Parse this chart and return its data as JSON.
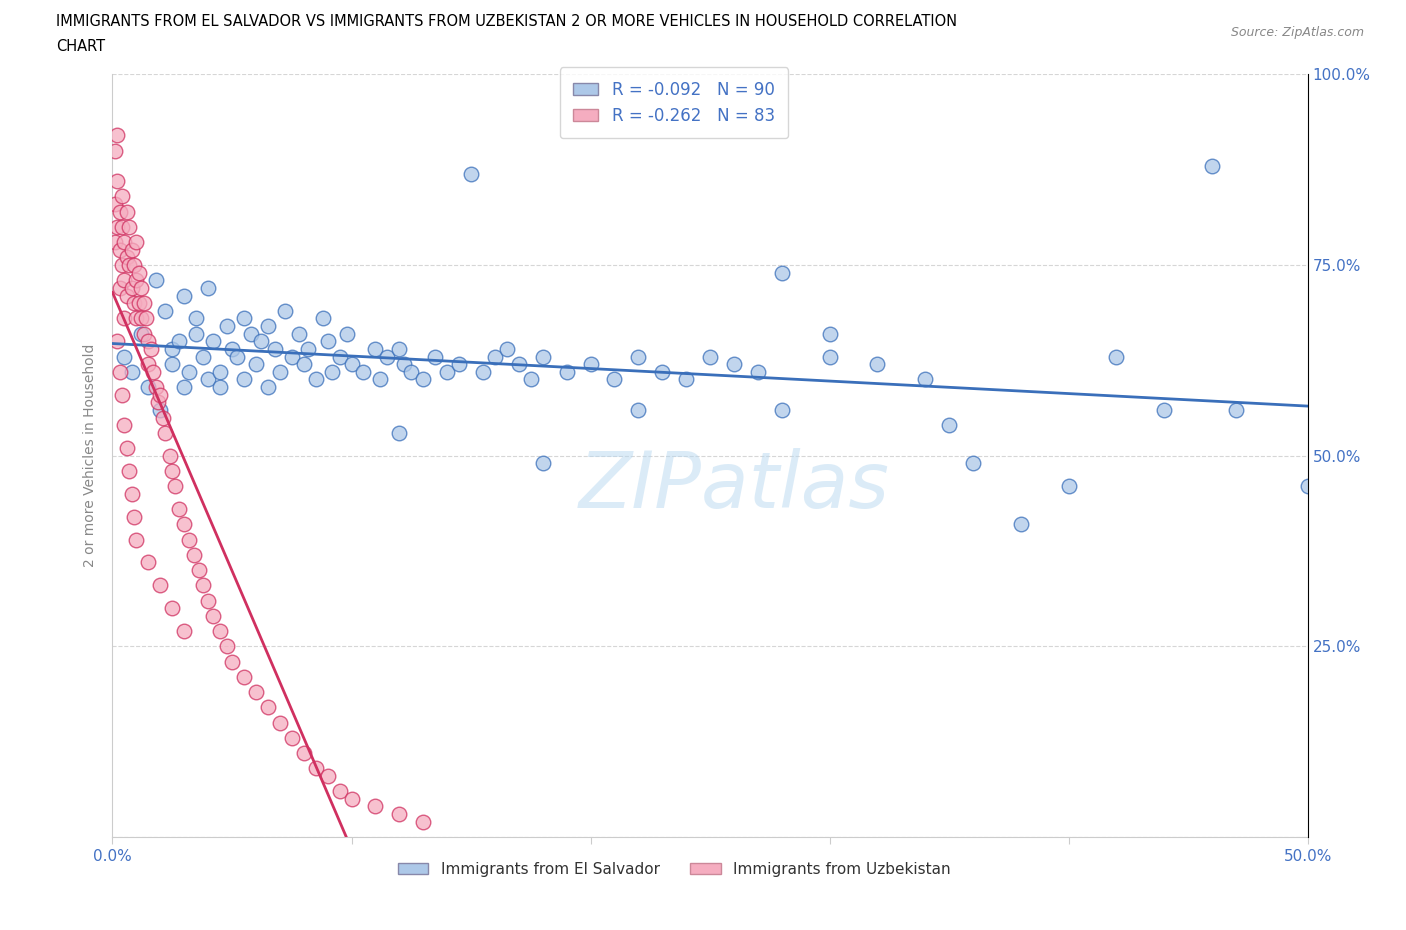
{
  "title_line1": "IMMIGRANTS FROM EL SALVADOR VS IMMIGRANTS FROM UZBEKISTAN 2 OR MORE VEHICLES IN HOUSEHOLD CORRELATION",
  "title_line2": "CHART",
  "source_text": "Source: ZipAtlas.com",
  "ylabel": "2 or more Vehicles in Household",
  "xlim": [
    0.0,
    0.5
  ],
  "ylim": [
    0.0,
    1.0
  ],
  "r_el_salvador": -0.092,
  "n_el_salvador": 90,
  "r_uzbekistan": -0.262,
  "n_uzbekistan": 83,
  "color_el_salvador": "#adc8e8",
  "color_uzbekistan": "#f5adc0",
  "line_color_el_salvador": "#3a6fba",
  "line_color_uzbekistan": "#d03060",
  "legend_label_el_salvador": "Immigrants from El Salvador",
  "legend_label_uzbekistan": "Immigrants from Uzbekistan",
  "watermark": "ZIPatlas",
  "el_salvador_x": [
    0.005,
    0.008,
    0.012,
    0.015,
    0.018,
    0.02,
    0.022,
    0.025,
    0.025,
    0.028,
    0.03,
    0.03,
    0.032,
    0.035,
    0.035,
    0.038,
    0.04,
    0.04,
    0.042,
    0.045,
    0.045,
    0.048,
    0.05,
    0.052,
    0.055,
    0.055,
    0.058,
    0.06,
    0.062,
    0.065,
    0.065,
    0.068,
    0.07,
    0.072,
    0.075,
    0.078,
    0.08,
    0.082,
    0.085,
    0.088,
    0.09,
    0.092,
    0.095,
    0.098,
    0.1,
    0.105,
    0.11,
    0.112,
    0.115,
    0.12,
    0.122,
    0.125,
    0.13,
    0.135,
    0.14,
    0.145,
    0.15,
    0.155,
    0.16,
    0.165,
    0.17,
    0.175,
    0.18,
    0.19,
    0.2,
    0.21,
    0.22,
    0.23,
    0.24,
    0.25,
    0.26,
    0.27,
    0.28,
    0.3,
    0.32,
    0.34,
    0.36,
    0.38,
    0.4,
    0.42,
    0.44,
    0.46,
    0.22,
    0.28,
    0.3,
    0.35,
    0.18,
    0.12,
    0.47,
    0.5
  ],
  "el_salvador_y": [
    0.63,
    0.61,
    0.66,
    0.59,
    0.73,
    0.56,
    0.69,
    0.62,
    0.64,
    0.65,
    0.59,
    0.71,
    0.61,
    0.68,
    0.66,
    0.63,
    0.6,
    0.72,
    0.65,
    0.61,
    0.59,
    0.67,
    0.64,
    0.63,
    0.68,
    0.6,
    0.66,
    0.62,
    0.65,
    0.59,
    0.67,
    0.64,
    0.61,
    0.69,
    0.63,
    0.66,
    0.62,
    0.64,
    0.6,
    0.68,
    0.65,
    0.61,
    0.63,
    0.66,
    0.62,
    0.61,
    0.64,
    0.6,
    0.63,
    0.64,
    0.62,
    0.61,
    0.6,
    0.63,
    0.61,
    0.62,
    0.87,
    0.61,
    0.63,
    0.64,
    0.62,
    0.6,
    0.63,
    0.61,
    0.62,
    0.6,
    0.63,
    0.61,
    0.6,
    0.63,
    0.62,
    0.61,
    0.56,
    0.63,
    0.62,
    0.6,
    0.49,
    0.41,
    0.46,
    0.63,
    0.56,
    0.88,
    0.56,
    0.74,
    0.66,
    0.54,
    0.49,
    0.53,
    0.56,
    0.46
  ],
  "uzbekistan_x": [
    0.001,
    0.001,
    0.001,
    0.002,
    0.002,
    0.002,
    0.003,
    0.003,
    0.003,
    0.004,
    0.004,
    0.004,
    0.005,
    0.005,
    0.005,
    0.006,
    0.006,
    0.006,
    0.007,
    0.007,
    0.008,
    0.008,
    0.009,
    0.009,
    0.01,
    0.01,
    0.01,
    0.011,
    0.011,
    0.012,
    0.012,
    0.013,
    0.013,
    0.014,
    0.015,
    0.015,
    0.016,
    0.017,
    0.018,
    0.019,
    0.02,
    0.021,
    0.022,
    0.024,
    0.025,
    0.026,
    0.028,
    0.03,
    0.032,
    0.034,
    0.036,
    0.038,
    0.04,
    0.042,
    0.045,
    0.048,
    0.05,
    0.055,
    0.06,
    0.065,
    0.07,
    0.075,
    0.08,
    0.085,
    0.09,
    0.095,
    0.1,
    0.11,
    0.12,
    0.13,
    0.002,
    0.003,
    0.004,
    0.005,
    0.006,
    0.007,
    0.008,
    0.009,
    0.01,
    0.015,
    0.02,
    0.025,
    0.03
  ],
  "uzbekistan_y": [
    0.9,
    0.83,
    0.78,
    0.92,
    0.86,
    0.8,
    0.82,
    0.77,
    0.72,
    0.84,
    0.8,
    0.75,
    0.78,
    0.73,
    0.68,
    0.82,
    0.76,
    0.71,
    0.8,
    0.75,
    0.77,
    0.72,
    0.75,
    0.7,
    0.78,
    0.73,
    0.68,
    0.74,
    0.7,
    0.72,
    0.68,
    0.7,
    0.66,
    0.68,
    0.65,
    0.62,
    0.64,
    0.61,
    0.59,
    0.57,
    0.58,
    0.55,
    0.53,
    0.5,
    0.48,
    0.46,
    0.43,
    0.41,
    0.39,
    0.37,
    0.35,
    0.33,
    0.31,
    0.29,
    0.27,
    0.25,
    0.23,
    0.21,
    0.19,
    0.17,
    0.15,
    0.13,
    0.11,
    0.09,
    0.08,
    0.06,
    0.05,
    0.04,
    0.03,
    0.02,
    0.65,
    0.61,
    0.58,
    0.54,
    0.51,
    0.48,
    0.45,
    0.42,
    0.39,
    0.36,
    0.33,
    0.3,
    0.27
  ]
}
